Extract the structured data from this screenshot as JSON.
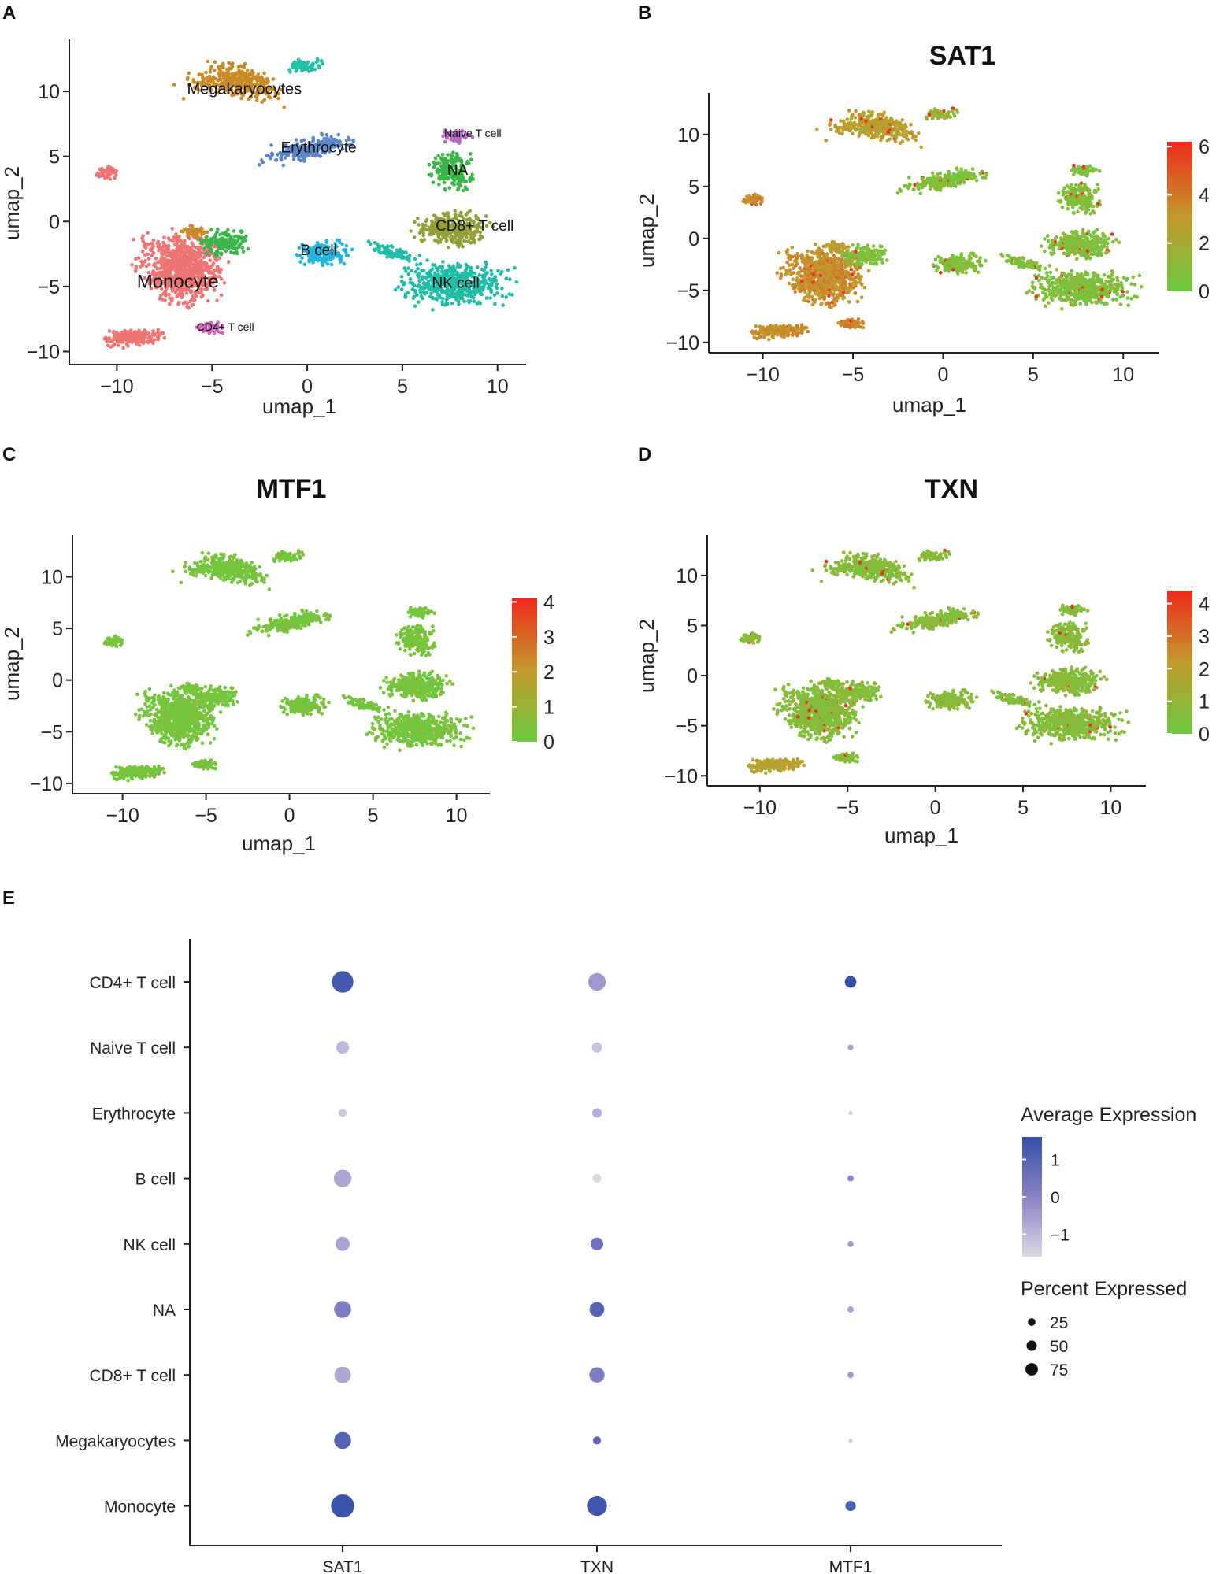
{
  "colors": {
    "low": "#6cc93f",
    "mid": "#c39a2c",
    "high": "#ee2a1c",
    "dot_low": "#d9d9e6",
    "dot_high": "#3550a8",
    "clusters": {
      "Megakaryocytes": "#c98b25",
      "Erythrocyte": "#5b86c8",
      "Naive T cell": "#b56cc5",
      "NA": "#3ab54a",
      "CD8+ T cell": "#93a03a",
      "NK cell": "#20bca6",
      "B cell": "#22b5d8",
      "Monocyte": "#ee7573",
      "CD4+ T cell": "#d563b9",
      "Top": "#22c1a6"
    }
  },
  "chart_data": [
    {
      "panel": "A",
      "type": "scatter",
      "title": "",
      "xlabel": "umap_1",
      "ylabel": "umap_2",
      "xlim": [
        -12.5,
        11.5
      ],
      "ylim": [
        -11,
        14
      ],
      "xticks": [
        -10,
        -5,
        0,
        5,
        10
      ],
      "yticks": [
        10,
        5,
        0,
        -5,
        -10
      ],
      "xtick_labels": [
        "−10",
        "−5",
        "0",
        "5",
        "10"
      ],
      "ytick_labels": [
        "10",
        "5",
        "0",
        "−5",
        "−10"
      ],
      "cluster_labels": [
        {
          "text": "Megakaryocytes",
          "x": -3.3,
          "y": 9.8,
          "size": 20
        },
        {
          "text": "Erythrocyte",
          "x": 0.6,
          "y": 5.3,
          "size": 19
        },
        {
          "text": "Naive T cell",
          "x": 8.7,
          "y": 6.5,
          "size": 14
        },
        {
          "text": "NA",
          "x": 7.9,
          "y": 3.6,
          "size": 19
        },
        {
          "text": "CD8+ T cell",
          "x": 8.8,
          "y": -0.7,
          "size": 19
        },
        {
          "text": "B cell",
          "x": 0.6,
          "y": -2.6,
          "size": 19
        },
        {
          "text": "NK cell",
          "x": 7.8,
          "y": -5.1,
          "size": 19
        },
        {
          "text": "Monocyte",
          "x": -6.8,
          "y": -5.1,
          "size": 24
        },
        {
          "text": "CD4+ T cell",
          "x": -4.3,
          "y": -8.4,
          "size": 14
        }
      ]
    },
    {
      "panel": "B",
      "type": "scatter",
      "title": "SAT1",
      "xlabel": "umap_1",
      "ylabel": "umap_2",
      "xlim": [
        -13,
        12
      ],
      "ylim": [
        -11,
        14
      ],
      "xticks": [
        -10,
        -5,
        0,
        5,
        10
      ],
      "yticks": [
        10,
        5,
        0,
        -5,
        -10
      ],
      "xtick_labels": [
        "−10",
        "−5",
        "0",
        "5",
        "10"
      ],
      "ytick_labels": [
        "10",
        "5",
        "0",
        "−5",
        "−10"
      ],
      "legend_ticks": [
        6,
        4,
        2,
        0
      ],
      "legend_labels": [
        "6",
        "4",
        "2",
        "0"
      ],
      "legend_max": 6.2
    },
    {
      "panel": "C",
      "type": "scatter",
      "title": "MTF1",
      "xlabel": "umap_1",
      "ylabel": "umap_2",
      "xlim": [
        -13,
        12
      ],
      "ylim": [
        -11,
        14
      ],
      "xticks": [
        -10,
        -5,
        0,
        5,
        10
      ],
      "yticks": [
        10,
        5,
        0,
        -5,
        -10
      ],
      "xtick_labels": [
        "−10",
        "−5",
        "0",
        "5",
        "10"
      ],
      "ytick_labels": [
        "10",
        "5",
        "0",
        "−5",
        "−10"
      ],
      "legend_ticks": [
        4,
        3,
        2,
        1,
        0
      ],
      "legend_labels": [
        "4",
        "3",
        "2",
        "1",
        "0"
      ],
      "legend_max": 4.1
    },
    {
      "panel": "D",
      "type": "scatter",
      "title": "TXN",
      "xlabel": "umap_1",
      "ylabel": "umap_2",
      "xlim": [
        -13,
        12
      ],
      "ylim": [
        -11,
        14
      ],
      "xticks": [
        -10,
        -5,
        0,
        5,
        10
      ],
      "yticks": [
        10,
        5,
        0,
        -5,
        -10
      ],
      "xtick_labels": [
        "−10",
        "−5",
        "0",
        "5",
        "10"
      ],
      "ytick_labels": [
        "10",
        "5",
        "0",
        "−5",
        "−10"
      ],
      "legend_ticks": [
        4,
        3,
        2,
        1,
        0
      ],
      "legend_labels": [
        "4",
        "3",
        "2",
        "1",
        "0"
      ],
      "legend_max": 4.4
    },
    {
      "panel": "E",
      "type": "scatter",
      "title": "",
      "genes": [
        "SAT1",
        "TXN",
        "MTF1"
      ],
      "cell_types": [
        "CD4+ T cell",
        "Naive T cell",
        "Erythrocyte",
        "B cell",
        "NK cell",
        "NA",
        "CD8+ T cell",
        "Megakaryocytes",
        "Monocyte"
      ],
      "percent_expressed": [
        [
          82,
          52,
          20
        ],
        [
          25,
          15,
          3
        ],
        [
          8,
          12,
          1
        ],
        [
          52,
          10,
          4
        ],
        [
          32,
          25,
          4
        ],
        [
          48,
          35,
          4
        ],
        [
          45,
          38,
          4
        ],
        [
          48,
          8,
          1
        ],
        [
          95,
          68,
          15
        ]
      ],
      "average_expression": [
        [
          1.3,
          -0.4,
          1.6
        ],
        [
          -1.0,
          -1.2,
          -0.6
        ],
        [
          -1.3,
          -0.8,
          -1.4
        ],
        [
          -0.7,
          -1.6,
          -0.1
        ],
        [
          -0.6,
          0.5,
          -0.5
        ],
        [
          0.2,
          1.0,
          -0.6
        ],
        [
          -0.7,
          0.2,
          -0.5
        ],
        [
          1.0,
          0.8,
          -1.4
        ],
        [
          1.5,
          1.4,
          1.2
        ]
      ],
      "legend_color_title": "Average Expression",
      "legend_color_ticks": [
        1,
        0,
        -1
      ],
      "legend_color_labels": [
        "1",
        "0",
        "−1"
      ],
      "legend_color_range": [
        -1.6,
        1.6
      ],
      "legend_size_title": "Percent Expressed",
      "legend_size_values": [
        25,
        50,
        75
      ],
      "legend_size_labels": [
        "25",
        "50",
        "75"
      ]
    }
  ],
  "panel_letters": [
    "A",
    "B",
    "C",
    "D",
    "E"
  ]
}
